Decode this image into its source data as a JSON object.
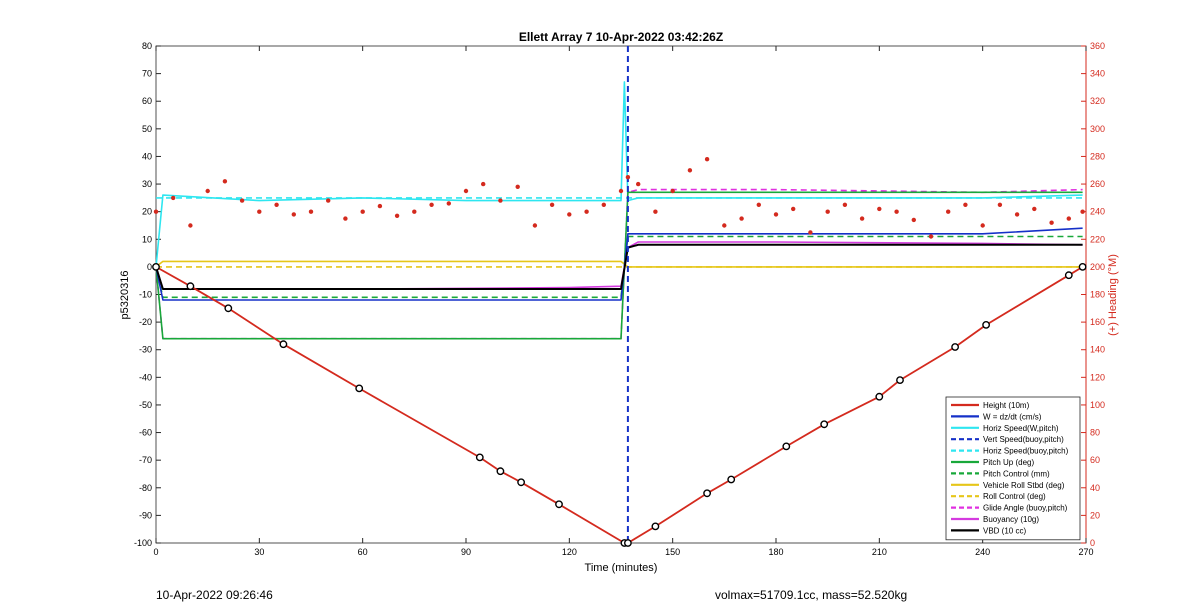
{
  "chart_data": {
    "type": "line",
    "title": "Ellett Array 7 10-Apr-2022 03:42:26Z",
    "xlabel": "Time (minutes)",
    "ylabel_left": "p5320316",
    "ylabel_right": "(+) Heading (°M)",
    "xlim": [
      0,
      270
    ],
    "ylim_left": [
      -100,
      80
    ],
    "ylim_right": [
      0,
      360
    ],
    "x_ticks": [
      "0",
      "30",
      "60",
      "90",
      "120",
      "150",
      "180",
      "210",
      "240",
      "270"
    ],
    "y_ticks_left": [
      "80",
      "70",
      "60",
      "50",
      "40",
      "30",
      "20",
      "10",
      "0",
      "-10",
      "-20",
      "-30",
      "-40",
      "-50",
      "-60",
      "-70",
      "-80",
      "-90",
      "-100"
    ],
    "y_ticks_right": [
      "360",
      "340",
      "320",
      "300",
      "280",
      "260",
      "240",
      "220",
      "200",
      "180",
      "160",
      "140",
      "120",
      "100",
      "80",
      "60",
      "40",
      "20",
      "0"
    ],
    "grid": false,
    "legend_position": "bottom-right",
    "colors": {
      "height": "#d42a1e",
      "w": "#1530c8",
      "horiz": "#2ee6f0",
      "vert_buoy": "#1530c8",
      "pitch": "#18a83a",
      "roll": "#e6c619",
      "glide": "#e030e0",
      "buoyancy": "#d43adf",
      "vbd": "#000000",
      "heading": "#d42a1e"
    },
    "series": [
      {
        "name": "Height (10m)",
        "x": [
          0,
          10,
          21,
          37,
          59,
          94,
          100,
          106,
          117,
          136,
          137,
          145,
          160,
          167,
          183,
          194,
          210,
          216,
          232,
          241,
          265,
          269
        ],
        "y": [
          0,
          -7,
          -15,
          -28,
          -44,
          -69,
          -74,
          -78,
          -86,
          -100,
          -100,
          -94,
          -82,
          -77,
          -65,
          -57,
          -47,
          -41,
          -29,
          -21,
          -3,
          0
        ]
      },
      {
        "name": "W = dz/dt (cm/s)",
        "x": [
          0,
          2,
          10,
          60,
          120,
          135,
          137,
          140,
          180,
          240,
          269
        ],
        "y": [
          0,
          -12,
          -12,
          -12,
          -12,
          -12,
          12,
          12,
          12,
          12,
          14
        ]
      },
      {
        "name": "Horiz Speed(W,pitch)",
        "x": [
          0,
          2,
          30,
          60,
          90,
          120,
          135,
          136,
          137,
          140,
          180,
          240,
          269
        ],
        "y": [
          0,
          26,
          24,
          25,
          24,
          24,
          24,
          67,
          24,
          25,
          25,
          25,
          26
        ]
      },
      {
        "name": "Vert Speed(buoy,pitch)",
        "x": [
          137,
          137
        ],
        "y": [
          80,
          -100
        ]
      },
      {
        "name": "Horiz Speed(buoy,pitch)",
        "x": [
          0,
          136,
          137,
          269
        ],
        "y": [
          25,
          25,
          25,
          25
        ]
      },
      {
        "name": "Pitch Up (deg)",
        "x": [
          0,
          2,
          60,
          120,
          135,
          137,
          140,
          180,
          240,
          269
        ],
        "y": [
          0,
          -26,
          -26,
          -26,
          -26,
          27,
          27,
          27,
          27,
          27
        ]
      },
      {
        "name": "Pitch Control (mm)",
        "x": [
          0,
          2,
          60,
          120,
          135,
          137,
          140,
          180,
          240,
          269
        ],
        "y": [
          0,
          -11,
          -11,
          -11,
          -11,
          11,
          11,
          11,
          11,
          11
        ]
      },
      {
        "name": "Vehicle Roll Stbd (deg)",
        "x": [
          0,
          2,
          21,
          37,
          60,
          94,
          120,
          135,
          137,
          145,
          160,
          180,
          210,
          240,
          269
        ],
        "y": [
          0,
          2,
          2,
          2,
          2,
          2,
          2,
          2,
          0,
          0,
          0,
          0,
          0,
          0,
          0
        ]
      },
      {
        "name": "Roll Control (deg)",
        "x": [
          0,
          2,
          60,
          120,
          135,
          137,
          150,
          180,
          240,
          269
        ],
        "y": [
          0,
          0,
          0,
          0,
          0,
          0,
          0,
          0,
          0,
          0
        ]
      },
      {
        "name": "Glide Angle (buoy,pitch)",
        "x": [
          0,
          2,
          60,
          120,
          135,
          137,
          140,
          180,
          240,
          269
        ],
        "y": [
          0,
          -26,
          -26,
          -26,
          -26,
          27,
          28,
          28,
          27,
          28
        ]
      },
      {
        "name": "Buoyancy (10g)",
        "x": [
          0,
          2,
          60,
          120,
          135,
          137,
          140,
          180,
          240,
          269
        ],
        "y": [
          0,
          -8,
          -8,
          -7.5,
          -7,
          7,
          9,
          9,
          8.5,
          8
        ]
      },
      {
        "name": "VBD (10 cc)",
        "x": [
          0,
          2,
          60,
          120,
          135,
          137,
          140,
          180,
          240,
          269
        ],
        "y": [
          0,
          -8,
          -8,
          -8,
          -8,
          7,
          8,
          8,
          8,
          8
        ]
      }
    ],
    "heading_series": {
      "name": "Heading",
      "axis": "right",
      "x": [
        0,
        5,
        10,
        15,
        20,
        25,
        30,
        35,
        40,
        45,
        50,
        55,
        60,
        65,
        70,
        75,
        80,
        85,
        90,
        95,
        100,
        105,
        110,
        115,
        120,
        125,
        130,
        135,
        137,
        140,
        145,
        150,
        155,
        160,
        165,
        170,
        175,
        180,
        185,
        190,
        195,
        200,
        205,
        210,
        215,
        220,
        225,
        230,
        235,
        240,
        245,
        250,
        255,
        260,
        265,
        269
      ],
      "y": [
        240,
        250,
        230,
        255,
        262,
        248,
        240,
        245,
        238,
        240,
        248,
        235,
        240,
        244,
        237,
        240,
        245,
        246,
        255,
        260,
        248,
        258,
        230,
        245,
        238,
        240,
        245,
        255,
        265,
        260,
        240,
        255,
        270,
        278,
        230,
        235,
        245,
        238,
        242,
        225,
        240,
        245,
        235,
        242,
        240,
        234,
        222,
        240,
        245,
        230,
        245,
        238,
        242,
        232,
        235,
        240
      ]
    }
  },
  "footer": {
    "date": "10-Apr-2022 09:26:46",
    "info": "volmax=51709.1cc, mass=52.520kg"
  }
}
